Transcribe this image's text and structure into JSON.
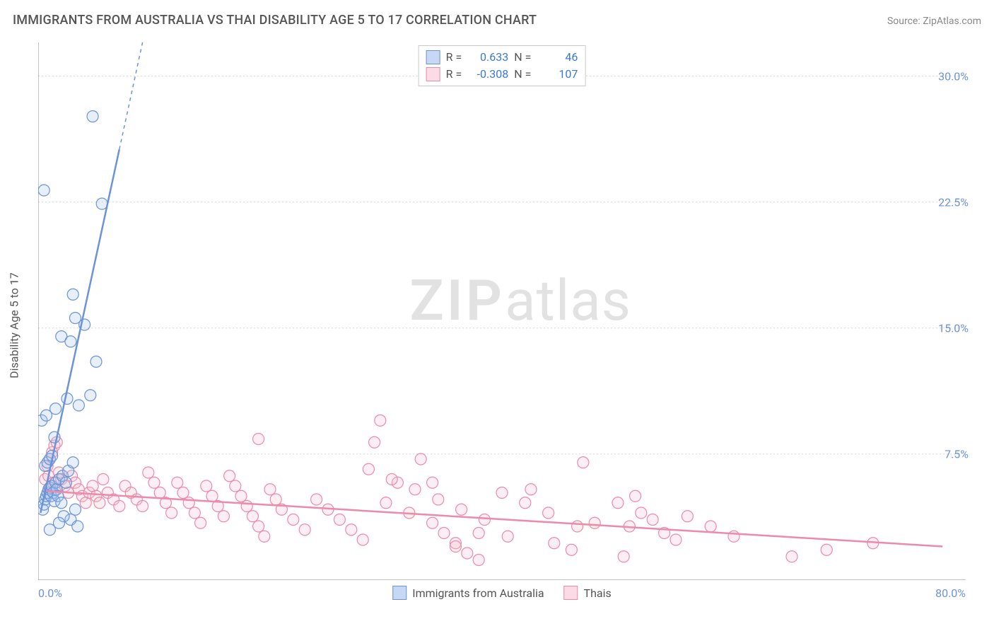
{
  "header": {
    "title": "IMMIGRANTS FROM AUSTRALIA VS THAI DISABILITY AGE 5 TO 17 CORRELATION CHART",
    "source_prefix": "Source: ",
    "source_name": "ZipAtlas.com"
  },
  "watermark": {
    "bold": "ZIP",
    "light": "atlas"
  },
  "chart": {
    "type": "scatter",
    "ylabel": "Disability Age 5 to 17",
    "xlim": [
      0,
      80
    ],
    "ylim": [
      0,
      32
    ],
    "xtick_labels": {
      "min": "0.0%",
      "max": "80.0%"
    },
    "ytick_positions": [
      7.5,
      15.0,
      22.5,
      30.0
    ],
    "ytick_labels": [
      "7.5%",
      "15.0%",
      "22.5%",
      "30.0%"
    ],
    "grid_color": "#d8d8d8",
    "axis_color": "#888888",
    "background_color": "#ffffff",
    "marker_radius": 8,
    "marker_stroke_width": 1.2,
    "marker_fill_opacity": 0.28,
    "trend_line_width": 2.5,
    "trend_dash": "5,5"
  },
  "series": {
    "australia": {
      "label": "Immigrants from Australia",
      "stroke": "#6b93d6",
      "fill": "#a9c4ec",
      "swatch_border": "#6b93d6",
      "swatch_fill": "#c6d8f3",
      "r_label": "R =",
      "r_value": "0.633",
      "n_label": "N =",
      "n_value": "46",
      "trend": {
        "x1": 0.2,
        "y1": 4.0,
        "x2": 9.0,
        "y2": 32.0,
        "solid_until_x": 7.0
      },
      "points": [
        [
          0.4,
          4.2
        ],
        [
          0.5,
          4.5
        ],
        [
          0.6,
          4.8
        ],
        [
          0.7,
          5.0
        ],
        [
          0.8,
          5.2
        ],
        [
          0.9,
          5.4
        ],
        [
          1.0,
          5.5
        ],
        [
          1.1,
          5.0
        ],
        [
          1.2,
          5.6
        ],
        [
          1.3,
          5.2
        ],
        [
          1.4,
          4.7
        ],
        [
          1.5,
          5.8
        ],
        [
          1.6,
          5.4
        ],
        [
          1.7,
          5.0
        ],
        [
          1.8,
          6.0
        ],
        [
          2.0,
          4.6
        ],
        [
          2.1,
          6.2
        ],
        [
          2.4,
          5.8
        ],
        [
          2.6,
          6.5
        ],
        [
          2.8,
          3.6
        ],
        [
          3.0,
          7.0
        ],
        [
          3.2,
          4.2
        ],
        [
          3.4,
          3.2
        ],
        [
          0.6,
          6.8
        ],
        [
          0.8,
          7.0
        ],
        [
          1.0,
          7.2
        ],
        [
          1.2,
          7.4
        ],
        [
          0.3,
          9.5
        ],
        [
          0.7,
          9.8
        ],
        [
          1.5,
          10.2
        ],
        [
          2.5,
          10.8
        ],
        [
          3.5,
          10.4
        ],
        [
          4.5,
          11.0
        ],
        [
          2.0,
          14.5
        ],
        [
          2.8,
          14.2
        ],
        [
          3.2,
          15.6
        ],
        [
          4.0,
          15.2
        ],
        [
          5.0,
          13.0
        ],
        [
          3.0,
          17.0
        ],
        [
          5.5,
          22.4
        ],
        [
          0.5,
          23.2
        ],
        [
          4.7,
          27.6
        ],
        [
          2.2,
          3.8
        ],
        [
          1.8,
          3.4
        ],
        [
          1.0,
          3.0
        ],
        [
          1.4,
          8.5
        ]
      ]
    },
    "thais": {
      "label": "Thais",
      "stroke": "#ec8aa9",
      "fill": "#f6c1d2",
      "swatch_border": "#ec8aa9",
      "swatch_fill": "#fbdbe6",
      "r_label": "R =",
      "r_value": "-0.308",
      "n_label": "N =",
      "n_value": "107",
      "trend": {
        "x1": 0.5,
        "y1": 5.3,
        "x2": 78.0,
        "y2": 2.0,
        "solid_until_x": 78.0
      },
      "points": [
        [
          0.8,
          6.8
        ],
        [
          1.0,
          7.2
        ],
        [
          1.2,
          7.6
        ],
        [
          1.4,
          8.0
        ],
        [
          1.6,
          8.2
        ],
        [
          0.6,
          6.0
        ],
        [
          0.9,
          6.2
        ],
        [
          1.1,
          5.6
        ],
        [
          1.3,
          5.8
        ],
        [
          1.5,
          5.4
        ],
        [
          1.8,
          6.4
        ],
        [
          2.0,
          6.0
        ],
        [
          2.3,
          5.6
        ],
        [
          2.6,
          5.2
        ],
        [
          2.9,
          6.2
        ],
        [
          3.2,
          5.8
        ],
        [
          3.5,
          5.4
        ],
        [
          3.8,
          5.0
        ],
        [
          4.1,
          4.6
        ],
        [
          4.4,
          5.2
        ],
        [
          4.7,
          5.6
        ],
        [
          5.0,
          5.0
        ],
        [
          5.3,
          4.6
        ],
        [
          5.6,
          6.0
        ],
        [
          6.0,
          5.2
        ],
        [
          6.5,
          4.8
        ],
        [
          7.0,
          4.4
        ],
        [
          7.5,
          5.6
        ],
        [
          8.0,
          5.2
        ],
        [
          8.5,
          4.8
        ],
        [
          9.0,
          4.4
        ],
        [
          9.5,
          6.4
        ],
        [
          10.0,
          5.8
        ],
        [
          10.5,
          5.2
        ],
        [
          11.0,
          4.6
        ],
        [
          11.5,
          4.0
        ],
        [
          12.0,
          5.8
        ],
        [
          12.5,
          5.2
        ],
        [
          13.0,
          4.6
        ],
        [
          13.5,
          4.0
        ],
        [
          14.0,
          3.4
        ],
        [
          14.5,
          5.6
        ],
        [
          15.0,
          5.0
        ],
        [
          15.5,
          4.4
        ],
        [
          16.0,
          3.8
        ],
        [
          16.5,
          6.2
        ],
        [
          17.0,
          5.6
        ],
        [
          17.5,
          5.0
        ],
        [
          18.0,
          4.4
        ],
        [
          18.5,
          3.8
        ],
        [
          19.0,
          3.2
        ],
        [
          19.5,
          2.6
        ],
        [
          20.0,
          5.4
        ],
        [
          20.5,
          4.8
        ],
        [
          21.0,
          4.2
        ],
        [
          22.0,
          3.6
        ],
        [
          23.0,
          3.0
        ],
        [
          24.0,
          4.8
        ],
        [
          25.0,
          4.2
        ],
        [
          26.0,
          3.6
        ],
        [
          27.0,
          3.0
        ],
        [
          28.0,
          2.4
        ],
        [
          29.0,
          8.2
        ],
        [
          19.0,
          8.4
        ],
        [
          30.0,
          4.6
        ],
        [
          31.0,
          5.8
        ],
        [
          32.0,
          4.0
        ],
        [
          33.0,
          7.2
        ],
        [
          34.0,
          3.4
        ],
        [
          35.0,
          2.8
        ],
        [
          36.0,
          2.2
        ],
        [
          37.0,
          1.6
        ],
        [
          38.0,
          1.2
        ],
        [
          28.5,
          6.6
        ],
        [
          30.5,
          6.0
        ],
        [
          32.5,
          5.4
        ],
        [
          34.5,
          4.8
        ],
        [
          36.5,
          4.2
        ],
        [
          38.5,
          3.6
        ],
        [
          29.5,
          9.5
        ],
        [
          34.0,
          5.8
        ],
        [
          36.0,
          2.0
        ],
        [
          38.0,
          2.8
        ],
        [
          40.0,
          5.2
        ],
        [
          42.0,
          4.6
        ],
        [
          44.0,
          4.0
        ],
        [
          46.0,
          1.8
        ],
        [
          48.0,
          3.4
        ],
        [
          47.0,
          7.0
        ],
        [
          50.0,
          4.6
        ],
        [
          52.0,
          4.0
        ],
        [
          54.0,
          2.8
        ],
        [
          51.0,
          3.2
        ],
        [
          53.0,
          3.6
        ],
        [
          55.0,
          2.4
        ],
        [
          50.5,
          1.4
        ],
        [
          56.0,
          3.8
        ],
        [
          58.0,
          3.2
        ],
        [
          60.0,
          2.6
        ],
        [
          65.0,
          1.4
        ],
        [
          68.0,
          1.8
        ],
        [
          72.0,
          2.2
        ],
        [
          51.5,
          5.0
        ],
        [
          44.5,
          2.2
        ],
        [
          42.5,
          5.4
        ],
        [
          40.5,
          2.6
        ],
        [
          46.5,
          3.2
        ]
      ]
    }
  }
}
